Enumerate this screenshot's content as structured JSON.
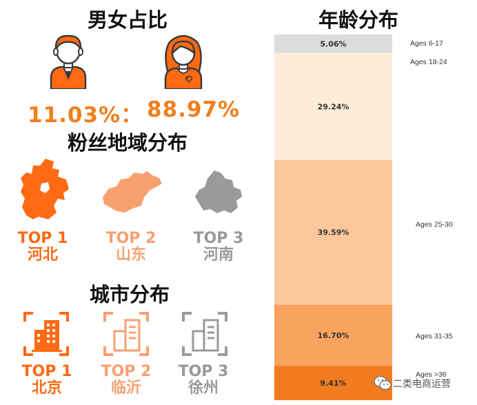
{
  "gender": {
    "title": "男女占比",
    "male_pct": "11.03%：",
    "female_pct": "88.97%",
    "male_icon": "male-avatar-icon",
    "female_icon": "female-avatar-icon"
  },
  "region": {
    "title": "粉丝地域分布",
    "items": [
      {
        "rank": "TOP 1",
        "name": "河北",
        "icon": "hebei-map-icon",
        "color": "#ff6a13"
      },
      {
        "rank": "TOP 2",
        "name": "山东",
        "icon": "shandong-map-icon",
        "color": "#f8a070"
      },
      {
        "rank": "TOP 3",
        "name": "河南",
        "icon": "henan-map-icon",
        "color": "#9a9a9a"
      }
    ]
  },
  "city": {
    "title": "城市分布",
    "items": [
      {
        "rank": "TOP 1",
        "name": "北京",
        "icon": "building-icon",
        "color": "#ff6a13"
      },
      {
        "rank": "TOP 2",
        "name": "临沂",
        "icon": "building-icon",
        "color": "#f8a070"
      },
      {
        "rank": "TOP 3",
        "name": "徐州",
        "icon": "building-icon",
        "color": "#9a9a9a"
      }
    ]
  },
  "chart_data": {
    "type": "bar",
    "title": "年龄分布",
    "stacked": true,
    "orientation": "vertical-stack",
    "categories": [
      "Ages 6-17",
      "Ages 18-24",
      "Ages 25-30",
      "Ages 31-35",
      "Ages >36"
    ],
    "values": [
      5.06,
      29.24,
      39.59,
      16.7,
      9.41
    ],
    "value_labels": [
      "5.06%",
      "29.24%",
      "39.59%",
      "16.70%",
      "9.41%"
    ],
    "colors": [
      "#dcdcdc",
      "#fdecd9",
      "#fcc79a",
      "#f8a35e",
      "#f27b1f"
    ],
    "legend": "right"
  },
  "watermark": {
    "text": "二类电商运营",
    "icon": "wechat-icon"
  }
}
